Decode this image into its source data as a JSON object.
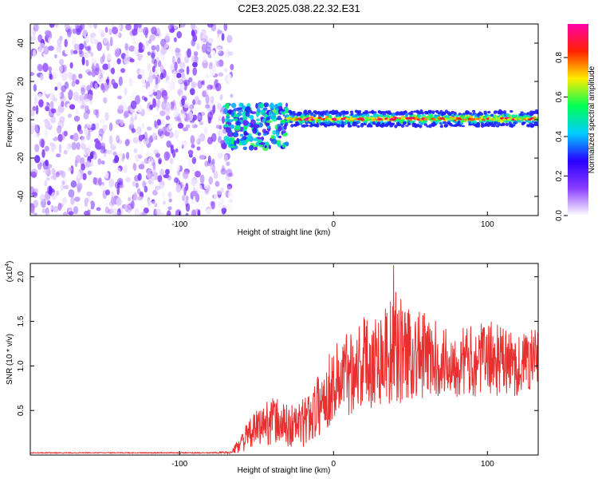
{
  "title": "C2E3.2025.038.22.32.E31",
  "chart_data": [
    {
      "type": "heatmap",
      "xlabel": "Height of straight line (km)",
      "ylabel": "Frequency (Hz)",
      "xlim": [
        -197,
        133
      ],
      "ylim": [
        -50,
        50
      ],
      "xticks": [
        -100,
        0,
        100
      ],
      "xtick_labels": [
        "-100",
        "0",
        "100"
      ],
      "yticks": [
        -40,
        -20,
        0,
        20,
        40
      ],
      "ytick_labels": [
        "-40",
        "-20",
        "0",
        "20",
        "40"
      ],
      "colorbar": {
        "label": "Normalized spectral amplitude",
        "range": [
          0,
          0.97
        ],
        "ticks": [
          0.0,
          0.2,
          0.4,
          0.6,
          0.8
        ],
        "tick_labels": [
          "0.0",
          "0.2",
          "0.4",
          "0.6",
          "0.8"
        ],
        "colormap": [
          "#ffffff",
          "#8a3cff",
          "#2a00ff",
          "#00ccff",
          "#00ff55",
          "#ffee00",
          "#ff2200",
          "#ff00aa"
        ]
      },
      "regions": [
        {
          "name": "noise",
          "x_range": [
            -197,
            -66
          ],
          "freq_range": [
            -50,
            50
          ],
          "amplitude": [
            0.0,
            0.2
          ]
        },
        {
          "name": "transition",
          "x_range": [
            -70,
            -30
          ],
          "freq_range": [
            -15,
            8
          ],
          "amplitude": [
            0.2,
            0.6
          ]
        },
        {
          "name": "signal",
          "x_range": [
            -30,
            133
          ],
          "freq_range": [
            -4,
            4
          ],
          "peak_freq": 0.5,
          "amplitude": [
            0.3,
            0.95
          ]
        }
      ]
    },
    {
      "type": "line",
      "xlabel": "Height of straight line (km)",
      "ylabel": "SNR (10 * v/v)",
      "y_multiplier_label": "(x10",
      "y_multiplier_exp": "4",
      "y_multiplier_close": ")",
      "xlim": [
        -197,
        133
      ],
      "ylim": [
        0,
        21500
      ],
      "xticks": [
        -100,
        0,
        100
      ],
      "xtick_labels": [
        "-100",
        "0",
        "100"
      ],
      "yticks": [
        5000,
        10000,
        15000,
        20000
      ],
      "ytick_labels": [
        "0.5",
        "1.0",
        "1.5",
        "2.0"
      ],
      "color": "#e83030",
      "series": [
        {
          "x": [
            -197,
            -160,
            -120,
            -80,
            -66,
            -60,
            -50,
            -40,
            -30,
            -20,
            -10,
            0,
            10,
            20,
            30,
            40,
            50,
            60,
            70,
            80,
            90,
            100,
            110,
            120,
            130
          ],
          "mean": [
            250,
            250,
            250,
            250,
            300,
            1500,
            3000,
            4000,
            3200,
            3500,
            5500,
            8000,
            9500,
            10500,
            11000,
            12000,
            11500,
            11000,
            10500,
            10500,
            10500,
            11000,
            10500,
            10000,
            11000
          ],
          "spread": [
            50,
            50,
            50,
            60,
            150,
            1200,
            2000,
            2800,
            2500,
            2800,
            3500,
            4500,
            5000,
            5500,
            5500,
            6500,
            5500,
            5000,
            4000,
            4000,
            4000,
            4200,
            4000,
            3500,
            3500
          ],
          "peak": {
            "x": 39,
            "y": 21300
          }
        }
      ]
    }
  ]
}
